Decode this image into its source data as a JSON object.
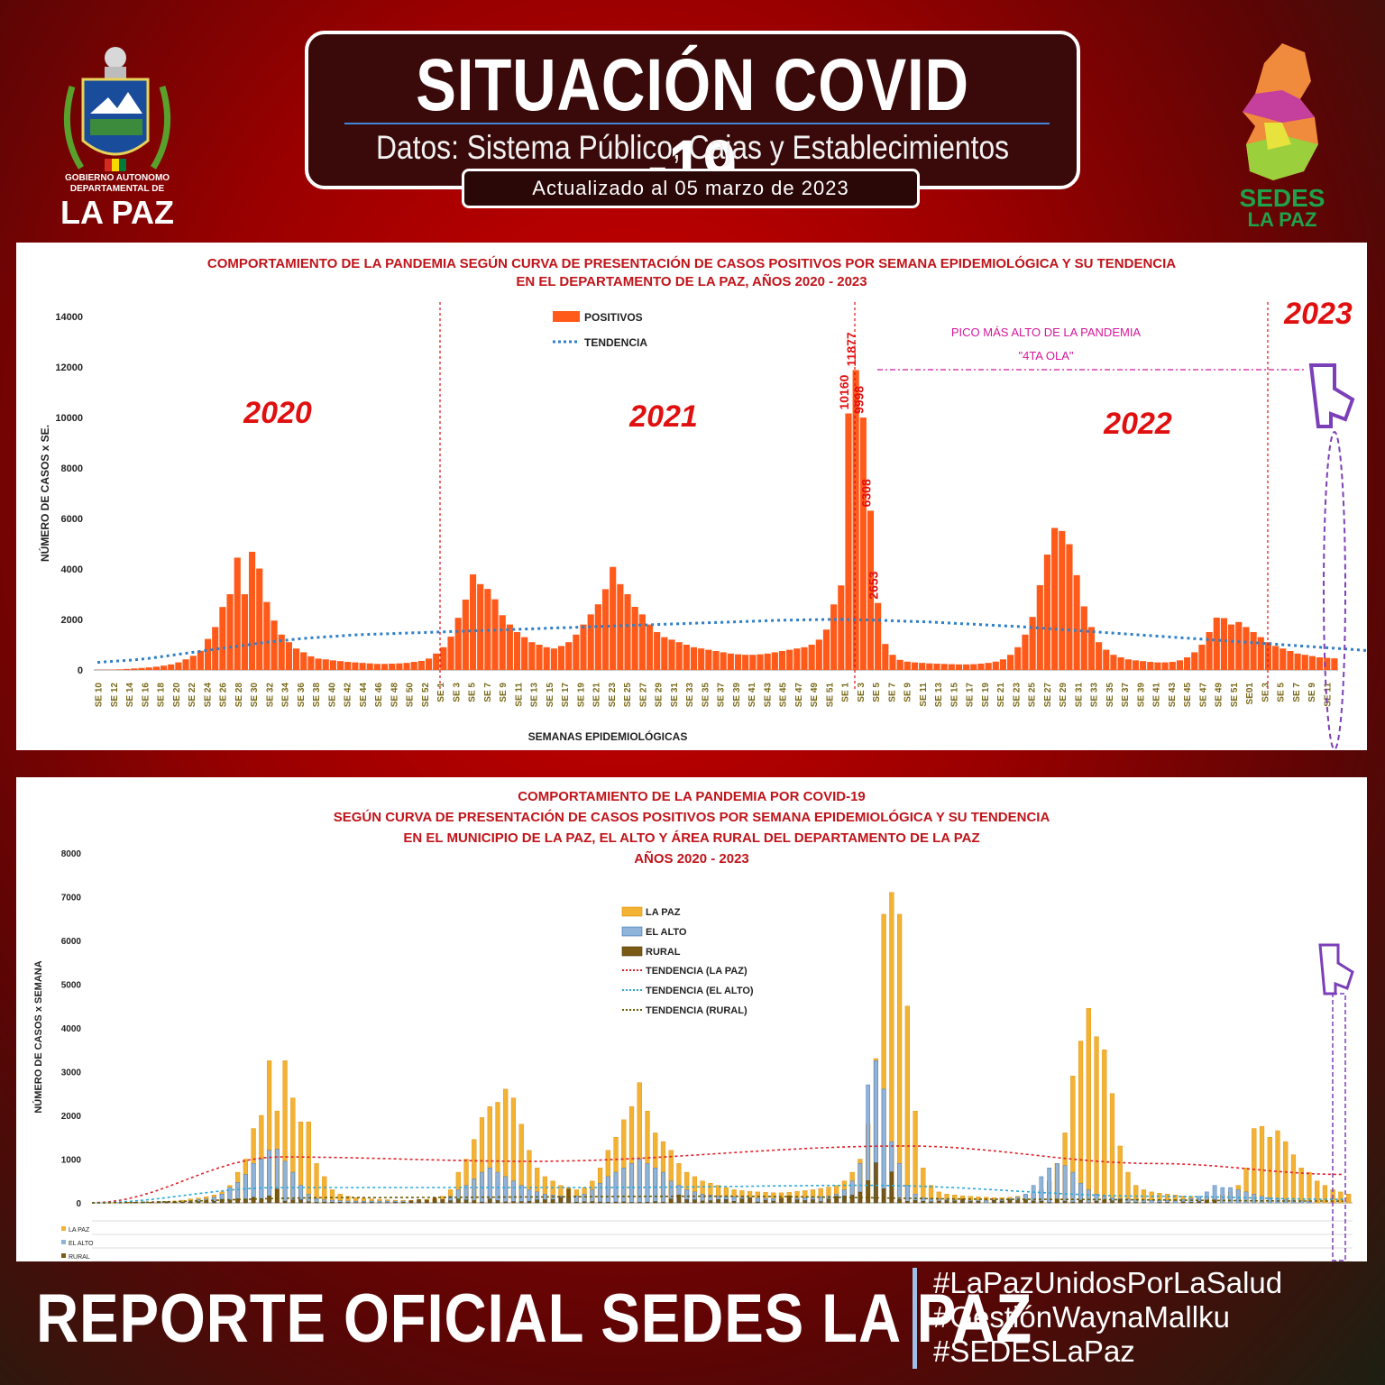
{
  "header": {
    "title": "SITUACIÓN COVID -19",
    "subtitle": "Datos: Sistema Público, Cajas y Establecimientos Privados",
    "updated": "Actualizado  al   05  marzo  de   2023"
  },
  "logos": {
    "left_line1": "GOBIERNO AUTONOMO",
    "left_line2": "DEPARTAMENTAL DE",
    "left_line3": "LA PAZ",
    "right_line1": "SEDES",
    "right_line2": "LA PAZ"
  },
  "footer": {
    "title": "REPORTE OFICIAL SEDES LA PAZ",
    "hashtags": [
      "#LaPazUnidosPorLaSalud",
      "#GestiónWaynaMallku",
      "#SEDESLaPaz"
    ]
  },
  "colors": {
    "bar": "#ff5a1a",
    "trend": "#2f7fc6",
    "title_red": "#c0141a",
    "lapaz": "#f2b233",
    "elalto": "#8fb3d9",
    "rural": "#7a5a14"
  },
  "chart_data": [
    {
      "type": "bar",
      "title_line1": "COMPORTAMIENTO DE LA PANDEMIA SEGÚN CURVA DE PRESENTACIÓN DE CASOS POSITIVOS POR SEMANA EPIDEMIOLÓGICA Y SU TENDENCIA",
      "title_line2": "EN EL DEPARTAMENTO DE LA PAZ, AÑOS 2020 - 2023",
      "ylabel": "NÚMERO DE CASOS x SE.",
      "xlabel": "SEMANAS EPIDEMIOLÓGICAS",
      "ylim": [
        0,
        14000
      ],
      "yticks": [
        0,
        2000,
        4000,
        6000,
        8000,
        10000,
        12000,
        14000
      ],
      "legend": [
        "POSITIVOS",
        "TENDENCIA"
      ],
      "year_labels": [
        "2020",
        "2021",
        "2022",
        "2023"
      ],
      "annotation_line1": "PICO MÁS ALTO DE LA PANDEMIA",
      "annotation_line2": "\"4TA OLA\"",
      "xtick_labels": [
        "SE 10",
        "SE 12",
        "SE 14",
        "SE 16",
        "SE 18",
        "SE 20",
        "SE 22",
        "SE 24",
        "SE 26",
        "SE 28",
        "SE 30",
        "SE 32",
        "SE 34",
        "SE 36",
        "SE 38",
        "SE 40",
        "SE 42",
        "SE 44",
        "SE 46",
        "SE 48",
        "SE 50",
        "SE 52",
        "SE 1",
        "SE 3",
        "SE 5",
        "SE 7",
        "SE 9",
        "SE 11",
        "SE 13",
        "SE 15",
        "SE 17",
        "SE 19",
        "SE 21",
        "SE 23",
        "SE 25",
        "SE 27",
        "SE 29",
        "SE 31",
        "SE 33",
        "SE 35",
        "SE 37",
        "SE 39",
        "SE 41",
        "SE 43",
        "SE 45",
        "SE 47",
        "SE 49",
        "SE 51",
        "SE 1",
        "SE 3",
        "SE 5",
        "SE 7",
        "SE 9",
        "SE 11",
        "SE 13",
        "SE 15",
        "SE 17",
        "SE 19",
        "SE 21",
        "SE 23",
        "SE 25",
        "SE 27",
        "SE 29",
        "SE 31",
        "SE 33",
        "SE 35",
        "SE 37",
        "SE 39",
        "SE 41",
        "SE 43",
        "SE 45",
        "SE 47",
        "SE 49",
        "SE 51",
        "SE01",
        "SE 3",
        "SE 5",
        "SE 7",
        "SE 9",
        "SE 11"
      ],
      "peak_labels": [
        "10160",
        "11877",
        "9998",
        "6308",
        "2653"
      ],
      "values": [
        5,
        10,
        15,
        25,
        40,
        60,
        80,
        100,
        130,
        170,
        220,
        300,
        420,
        560,
        760,
        1229,
        1700,
        2494,
        3000,
        4449,
        3000,
        4680,
        4017,
        2693,
        1957,
        1400,
        1100,
        850,
        700,
        540,
        450,
        420,
        380,
        350,
        320,
        300,
        280,
        260,
        240,
        240,
        250,
        260,
        280,
        320,
        360,
        450,
        650,
        900,
        1319,
        2066,
        2787,
        3785,
        3400,
        3209,
        2800,
        2168,
        1800,
        1500,
        1300,
        1100,
        1000,
        900,
        850,
        950,
        1100,
        1400,
        1800,
        2200,
        2600,
        3200,
        4081,
        3400,
        3000,
        2500,
        2200,
        1800,
        1500,
        1300,
        1200,
        1100,
        1000,
        900,
        850,
        800,
        750,
        700,
        650,
        620,
        600,
        600,
        620,
        650,
        700,
        750,
        800,
        850,
        900,
        1000,
        1200,
        1600,
        2596,
        3349,
        10160,
        11877,
        9998,
        6308,
        2653,
        1029,
        600,
        400,
        330,
        300,
        280,
        260,
        250,
        240,
        230,
        220,
        220,
        230,
        250,
        280,
        330,
        420,
        600,
        900,
        1400,
        2100,
        3358,
        4571,
        5625,
        5504,
        4980,
        3754,
        2518,
        1700,
        1100,
        800,
        600,
        500,
        420,
        380,
        350,
        320,
        300,
        300,
        320,
        380,
        500,
        700,
        1000,
        1500,
        2073,
        2053,
        1800,
        1900,
        1700,
        1500,
        1300,
        1100,
        950,
        850,
        750,
        650,
        600,
        550,
        500,
        480,
        460
      ],
      "trend": [
        300,
        320,
        340,
        360,
        380,
        400,
        430,
        460,
        500,
        540,
        580,
        620,
        660,
        700,
        740,
        780,
        820,
        860,
        900,
        940,
        980,
        1020,
        1060,
        1100,
        1130,
        1160,
        1190,
        1220,
        1250,
        1270,
        1290,
        1310,
        1330,
        1350,
        1370,
        1390,
        1400,
        1410,
        1420,
        1430,
        1440,
        1450,
        1460,
        1470,
        1480,
        1490,
        1500,
        1510,
        1520,
        1530,
        1540,
        1550,
        1560,
        1570,
        1580,
        1590,
        1600,
        1610,
        1620,
        1630,
        1640,
        1650,
        1660,
        1670,
        1680,
        1690,
        1700,
        1710,
        1720,
        1730,
        1740,
        1750,
        1760,
        1770,
        1780,
        1790,
        1800,
        1810,
        1820,
        1830,
        1840,
        1850,
        1860,
        1870,
        1880,
        1890,
        1900,
        1910,
        1920,
        1930,
        1940,
        1950,
        1960,
        1970,
        1975,
        1980,
        1985,
        1990,
        1995,
        2000,
        2000,
        2000,
        1995,
        1990,
        1985,
        1980,
        1970,
        1960,
        1950,
        1940,
        1930,
        1920,
        1910,
        1900,
        1885,
        1870,
        1855,
        1840,
        1825,
        1810,
        1795,
        1780,
        1765,
        1750,
        1735,
        1720,
        1700,
        1680,
        1660,
        1640,
        1620,
        1600,
        1580,
        1560,
        1540,
        1520,
        1500,
        1480,
        1460,
        1440,
        1420,
        1400,
        1380,
        1360,
        1340,
        1320,
        1300,
        1280,
        1260,
        1240,
        1220,
        1200,
        1180,
        1160,
        1140,
        1120,
        1100,
        1080,
        1060,
        1040,
        1020,
        1000,
        980,
        960,
        940,
        920,
        900,
        880,
        860,
        840,
        820,
        800,
        780,
        760,
        740,
        720,
        700
      ]
    },
    {
      "type": "bar",
      "title_line1": "COMPORTAMIENTO DE LA PANDEMIA POR COVID-19",
      "title_line2": "SEGÚN CURVA DE PRESENTACIÓN DE CASOS POSITIVOS POR SEMANA EPIDEMIOLÓGICA Y SU TENDENCIA",
      "title_line3": "EN EL  MUNICIPIO DE LA PAZ, EL ALTO Y ÁREA RURAL DEL DEPARTAMENTO DE LA PAZ",
      "title_line4": "AÑOS 2020 - 2023",
      "ylabel": "NÚMERO DE CASOS x SEMANA",
      "ylim": [
        0,
        8000
      ],
      "yticks": [
        0,
        1000,
        2000,
        3000,
        4000,
        5000,
        6000,
        7000,
        8000
      ],
      "legend": [
        "LA PAZ",
        "EL ALTO",
        "RURAL",
        "TENDENCIA (LA PAZ)",
        "TENDENCIA (EL ALTO)",
        "TENDENCIA (RURAL)"
      ],
      "table_rows": [
        "LA PAZ",
        "EL ALTO",
        "RURAL"
      ],
      "series": [
        {
          "name": "LA PAZ",
          "values": [
            0,
            0,
            1,
            4,
            16,
            15,
            20,
            17,
            28,
            38,
            40,
            60,
            90,
            110,
            140,
            180,
            250,
            400,
            700,
            1000,
            1700,
            2000,
            3250,
            2100,
            3250,
            2400,
            1850,
            1850,
            900,
            600,
            300,
            200,
            150,
            120,
            100,
            90,
            80,
            70,
            60,
            60,
            60,
            70,
            80,
            100,
            150,
            300,
            700,
            1000,
            1450,
            1950,
            2200,
            2300,
            2600,
            2400,
            1800,
            1200,
            800,
            600,
            500,
            400,
            350,
            300,
            350,
            500,
            800,
            1200,
            1500,
            1900,
            2200,
            2750,
            2100,
            1600,
            1400,
            1200,
            900,
            700,
            600,
            500,
            450,
            400,
            350,
            300,
            280,
            260,
            250,
            240,
            230,
            230,
            240,
            260,
            280,
            300,
            330,
            360,
            400,
            500,
            700,
            1000,
            1800,
            3300,
            6600,
            7100,
            6600,
            4500,
            2100,
            800,
            400,
            250,
            200,
            180,
            160,
            150,
            140,
            130,
            120,
            120,
            130,
            150,
            180,
            220,
            300,
            500,
            900,
            1600,
            2900,
            3700,
            4450,
            3800,
            3500,
            2500,
            1300,
            700,
            400,
            300,
            250,
            220,
            200,
            180,
            160,
            150,
            140,
            140,
            150,
            180,
            250,
            400,
            800,
            1700,
            1750,
            1500,
            1650,
            1400,
            1100,
            800,
            700,
            500,
            400,
            300,
            250,
            200
          ]
        },
        {
          "name": "EL ALTO",
          "values": [
            0,
            0,
            0,
            6,
            5,
            7,
            27,
            5,
            35,
            30,
            11,
            22,
            39,
            76,
            90,
            130,
            200,
            350,
            470,
            650,
            900,
            1000,
            1200,
            1230,
            950,
            700,
            400,
            200,
            100,
            80,
            60,
            50,
            40,
            40,
            40,
            40,
            40,
            40,
            40,
            40,
            40,
            40,
            40,
            50,
            80,
            150,
            300,
            400,
            550,
            700,
            800,
            700,
            600,
            500,
            400,
            300,
            250,
            200,
            180,
            160,
            150,
            160,
            200,
            300,
            450,
            600,
            700,
            800,
            900,
            1000,
            900,
            800,
            700,
            500,
            400,
            300,
            250,
            200,
            180,
            160,
            150,
            140,
            130,
            120,
            110,
            100,
            100,
            100,
            100,
            110,
            120,
            130,
            140,
            160,
            200,
            300,
            500,
            900,
            2700,
            3250,
            2600,
            1400,
            900,
            400,
            200,
            120,
            100,
            90,
            80,
            70,
            60,
            60,
            60,
            60,
            70,
            80,
            100,
            130,
            200,
            400,
            600,
            800,
            900,
            850,
            700,
            450,
            300,
            200,
            150,
            120,
            100,
            90,
            80,
            70,
            60,
            60,
            60,
            70,
            80,
            100,
            150,
            250,
            400,
            350,
            350,
            300,
            250,
            200,
            150,
            120,
            100,
            80,
            60,
            50,
            40
          ]
        },
        {
          "name": "RURAL",
          "values": [
            0,
            0,
            0,
            0,
            3,
            16,
            9,
            10,
            7,
            17,
            18,
            17,
            18,
            29,
            51,
            38,
            82,
            64,
            95,
            86,
            129,
            91,
            161,
            316,
            41,
            69,
            73,
            28,
            12,
            20,
            15,
            14,
            9,
            5,
            10,
            10,
            4,
            6,
            12,
            15,
            48,
            77,
            63,
            121,
            71,
            51,
            91,
            69,
            51,
            20,
            90,
            53,
            23,
            30,
            29,
            38,
            70,
            72,
            74,
            131,
            316,
            18,
            25,
            30,
            21,
            17,
            20,
            24,
            10,
            11,
            18,
            31,
            19,
            91,
            183,
            74,
            71,
            43,
            51,
            75,
            79,
            37,
            91,
            107,
            21,
            61,
            41,
            110,
            161,
            72,
            52,
            73,
            30,
            89,
            151,
            157,
            177,
            247,
            511,
            917,
            324,
            710,
            76,
            37,
            55,
            36,
            25,
            41,
            52,
            44,
            91,
            33,
            34,
            0,
            57,
            42,
            73,
            52,
            73,
            43,
            41,
            8,
            85,
            41,
            19,
            60,
            4,
            41,
            64,
            47,
            79,
            10,
            10,
            8,
            0,
            9,
            11,
            0,
            22,
            13,
            31,
            61,
            69
          ]
        }
      ]
    }
  ]
}
